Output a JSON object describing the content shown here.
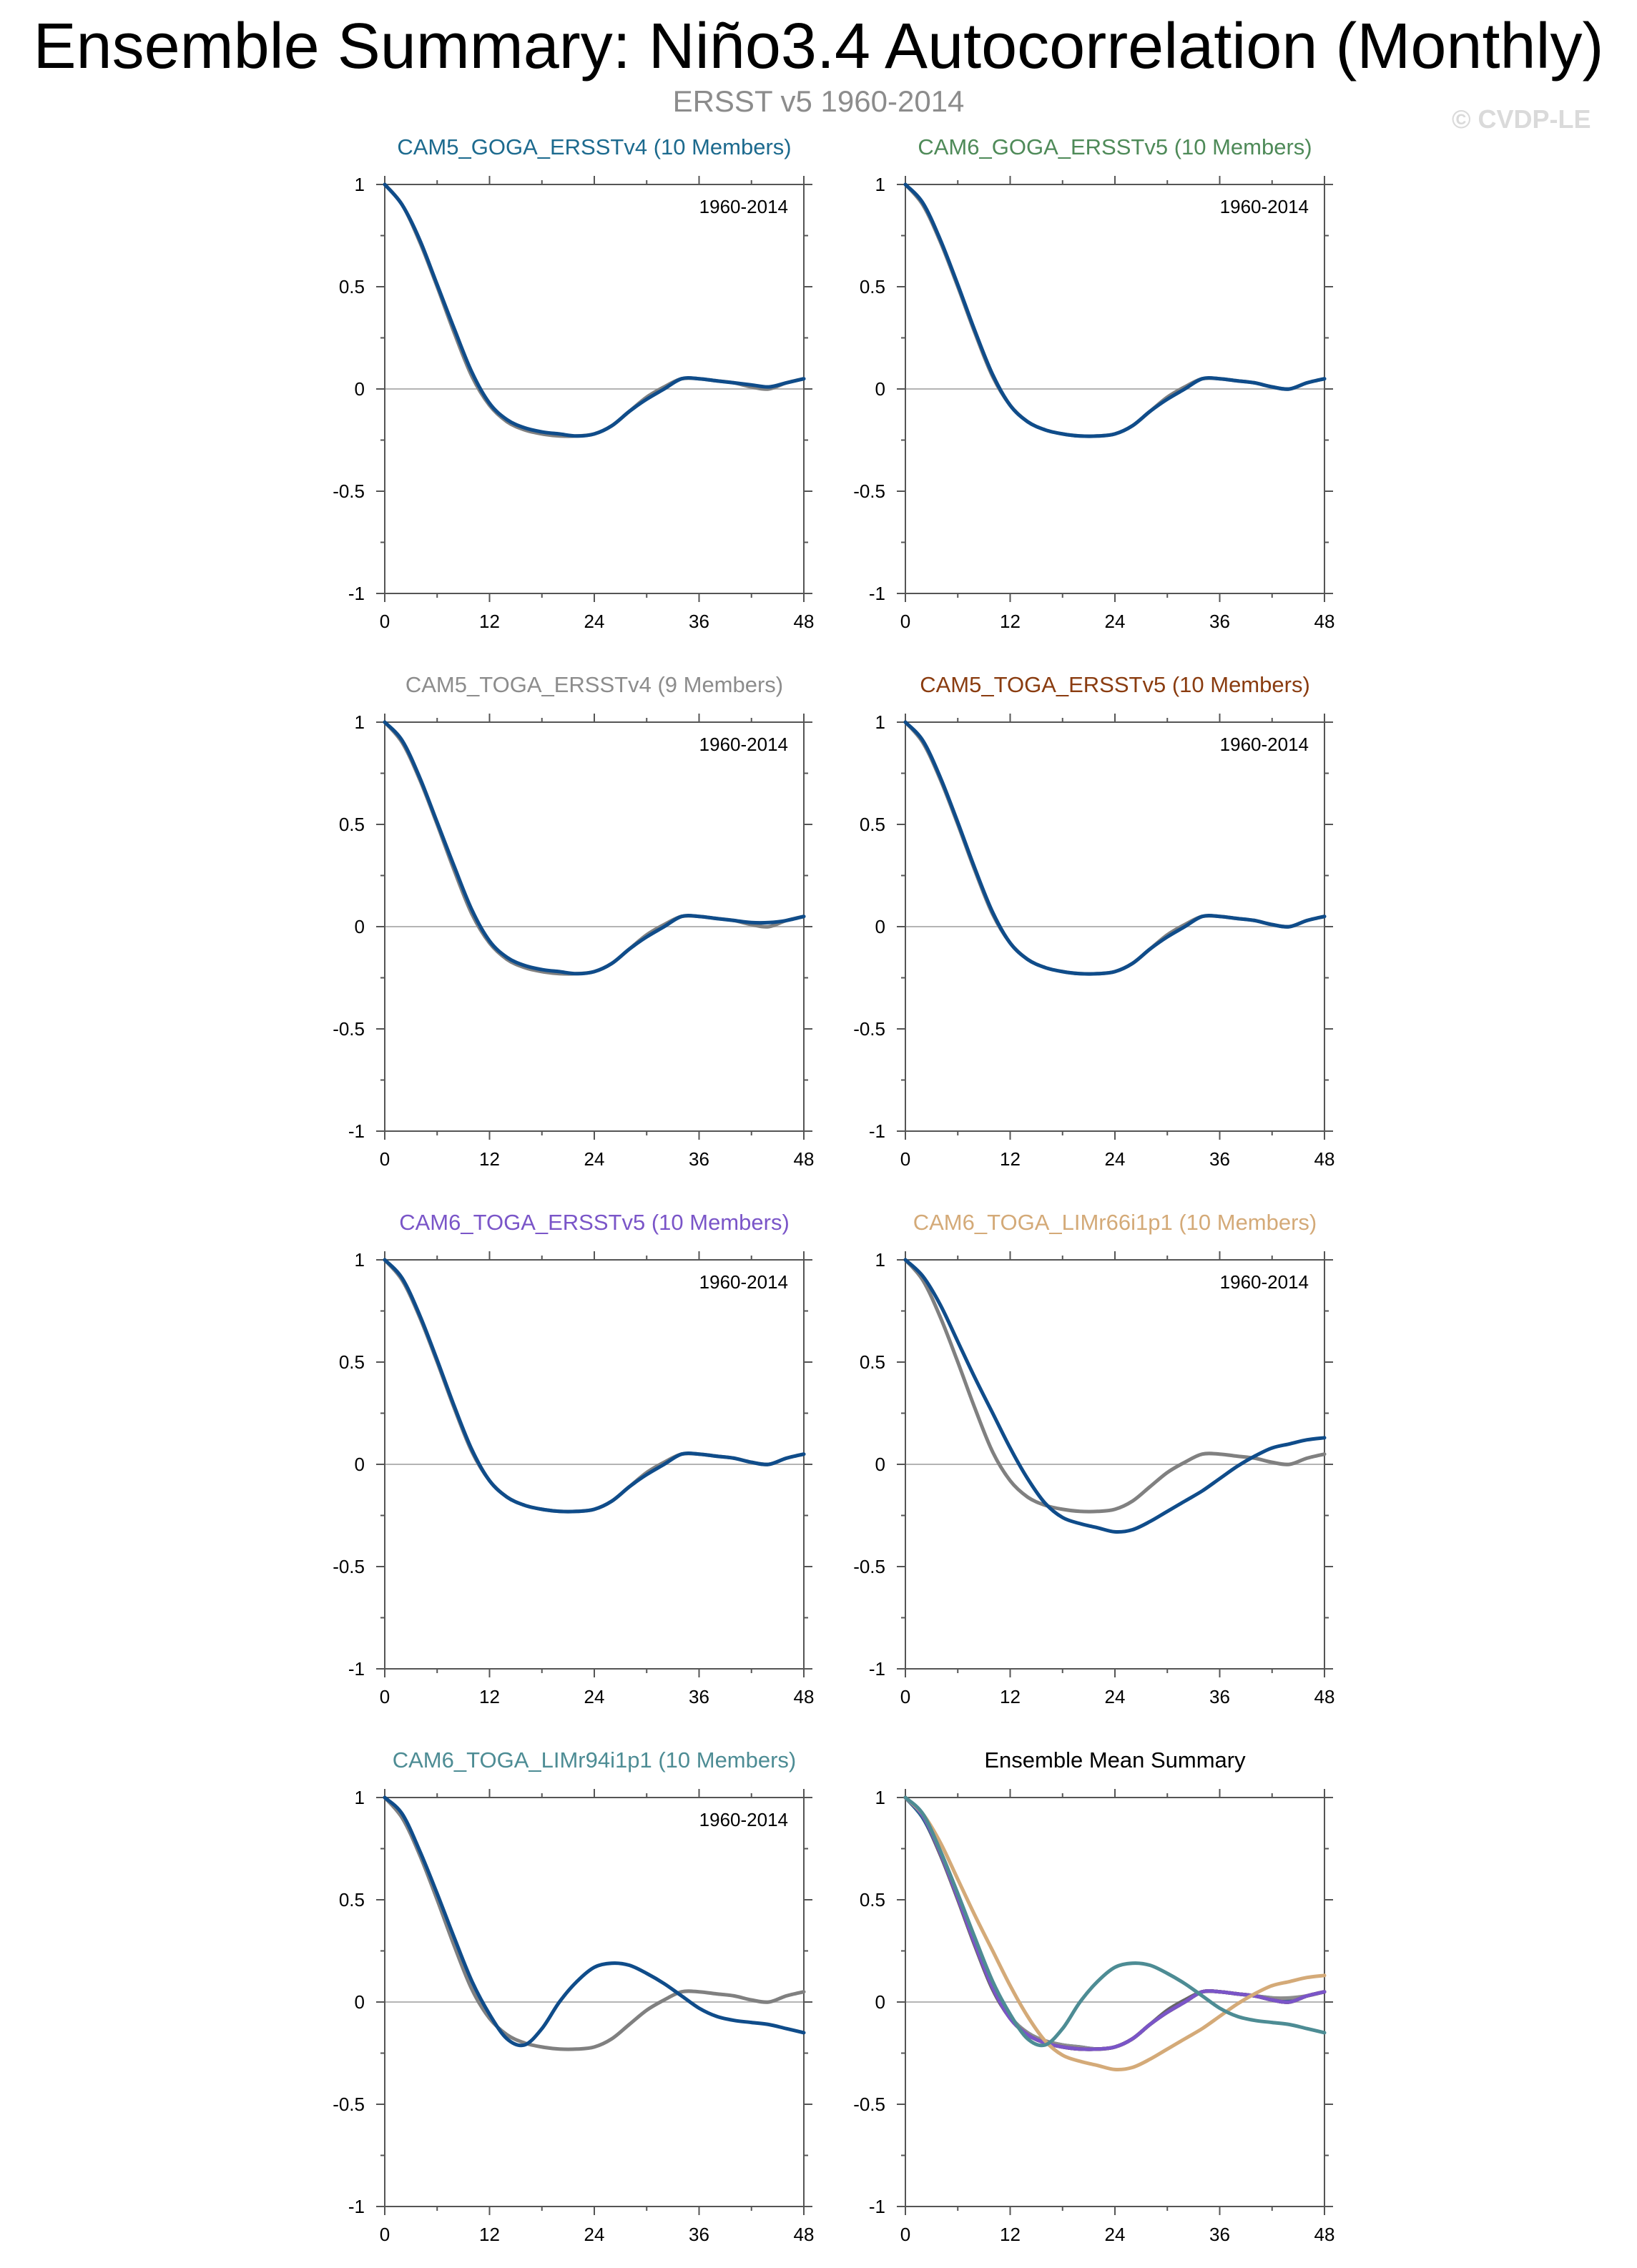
{
  "header": {
    "title": "Ensemble Summary: Niño3.4 Autocorrelation (Monthly)",
    "subtitle": "ERSST v5 1960-2014",
    "copyright": "© CVDP-LE"
  },
  "colors": {
    "observations": "#808080",
    "zero_line": "#b4b4b4",
    "axis": "#555555",
    "CAM5_GOGA_ERSSTv4": "#1c6a8e",
    "CAM6_GOGA_ERSSTv5": "#4e8a58",
    "CAM5_TOGA_ERSSTv4": "#8c8c8c",
    "CAM5_TOGA_ERSSTv5": "#8a3c10",
    "CAM6_TOGA_ERSSTv5": "#7a55c8",
    "CAM6_TOGA_LIMr66i1p1": "#d4aa78",
    "CAM6_TOGA_LIMr94i1p1": "#4d8c94",
    "ensemble_mean_line": "#0f4c8a"
  },
  "chart_data": [
    {
      "type": "line",
      "title": "CAM5_GOGA_ERSSTv4 (10 Members)",
      "title_color": "#1c6a8e",
      "annotation": "1960-2014",
      "xlabel": "",
      "ylabel": "",
      "xlim": [
        0,
        48
      ],
      "ylim": [
        -1,
        1
      ],
      "x_ticks": [
        "0",
        "12",
        "24",
        "36",
        "48"
      ],
      "y_ticks": [
        "1",
        "0.5",
        "0",
        "-0.5",
        "-1"
      ],
      "x": [
        0,
        2,
        4,
        6,
        8,
        10,
        12,
        14,
        16,
        18,
        20,
        22,
        24,
        26,
        28,
        30,
        32,
        34,
        36,
        38,
        40,
        42,
        44,
        46,
        48
      ],
      "series": [
        {
          "name": "ERSST v5",
          "color": "#808080",
          "values": [
            1,
            0.9,
            0.72,
            0.5,
            0.27,
            0.06,
            -0.08,
            -0.16,
            -0.2,
            -0.22,
            -0.23,
            -0.23,
            -0.22,
            -0.18,
            -0.11,
            -0.04,
            0.01,
            0.05,
            0.05,
            0.04,
            0.03,
            0.01,
            0.0,
            0.03,
            0.05
          ]
        },
        {
          "name": "Ensemble Mean",
          "color": "#0f4c8a",
          "values": [
            1,
            0.9,
            0.73,
            0.51,
            0.29,
            0.08,
            -0.07,
            -0.15,
            -0.19,
            -0.21,
            -0.22,
            -0.23,
            -0.22,
            -0.18,
            -0.11,
            -0.05,
            0.0,
            0.05,
            0.05,
            0.04,
            0.03,
            0.02,
            0.01,
            0.03,
            0.05
          ]
        }
      ]
    },
    {
      "type": "line",
      "title": "CAM6_GOGA_ERSSTv5 (10 Members)",
      "title_color": "#4e8a58",
      "annotation": "1960-2014",
      "xlabel": "",
      "ylabel": "",
      "xlim": [
        0,
        48
      ],
      "ylim": [
        -1,
        1
      ],
      "x_ticks": [
        "0",
        "12",
        "24",
        "36",
        "48"
      ],
      "y_ticks": [
        "1",
        "0.5",
        "0",
        "-0.5",
        "-1"
      ],
      "x": [
        0,
        2,
        4,
        6,
        8,
        10,
        12,
        14,
        16,
        18,
        20,
        22,
        24,
        26,
        28,
        30,
        32,
        34,
        36,
        38,
        40,
        42,
        44,
        46,
        48
      ],
      "series": [
        {
          "name": "ERSST v5",
          "color": "#808080",
          "values": [
            1,
            0.9,
            0.72,
            0.5,
            0.27,
            0.06,
            -0.08,
            -0.16,
            -0.2,
            -0.22,
            -0.23,
            -0.23,
            -0.22,
            -0.18,
            -0.11,
            -0.04,
            0.01,
            0.05,
            0.05,
            0.04,
            0.03,
            0.01,
            0.0,
            0.03,
            0.05
          ]
        },
        {
          "name": "Ensemble Mean",
          "color": "#0f4c8a",
          "values": [
            1,
            0.91,
            0.73,
            0.51,
            0.28,
            0.07,
            -0.08,
            -0.16,
            -0.2,
            -0.22,
            -0.23,
            -0.23,
            -0.22,
            -0.18,
            -0.11,
            -0.05,
            0.0,
            0.05,
            0.05,
            0.04,
            0.03,
            0.01,
            0.0,
            0.03,
            0.05
          ]
        }
      ]
    },
    {
      "type": "line",
      "title": "CAM5_TOGA_ERSSTv4 (9 Members)",
      "title_color": "#8c8c8c",
      "annotation": "1960-2014",
      "xlabel": "",
      "ylabel": "",
      "xlim": [
        0,
        48
      ],
      "ylim": [
        -1,
        1
      ],
      "x_ticks": [
        "0",
        "12",
        "24",
        "36",
        "48"
      ],
      "y_ticks": [
        "1",
        "0.5",
        "0",
        "-0.5",
        "-1"
      ],
      "x": [
        0,
        2,
        4,
        6,
        8,
        10,
        12,
        14,
        16,
        18,
        20,
        22,
        24,
        26,
        28,
        30,
        32,
        34,
        36,
        38,
        40,
        42,
        44,
        46,
        48
      ],
      "series": [
        {
          "name": "ERSST v5",
          "color": "#808080",
          "values": [
            1,
            0.9,
            0.72,
            0.5,
            0.27,
            0.06,
            -0.08,
            -0.16,
            -0.2,
            -0.22,
            -0.23,
            -0.23,
            -0.22,
            -0.18,
            -0.11,
            -0.04,
            0.01,
            0.05,
            0.05,
            0.04,
            0.03,
            0.01,
            0.0,
            0.03,
            0.05
          ]
        },
        {
          "name": "Ensemble Mean",
          "color": "#0f4c8a",
          "values": [
            1,
            0.91,
            0.73,
            0.51,
            0.29,
            0.08,
            -0.07,
            -0.15,
            -0.19,
            -0.21,
            -0.22,
            -0.23,
            -0.22,
            -0.18,
            -0.11,
            -0.05,
            0.0,
            0.05,
            0.05,
            0.04,
            0.03,
            0.02,
            0.02,
            0.03,
            0.05
          ]
        }
      ]
    },
    {
      "type": "line",
      "title": "CAM5_TOGA_ERSSTv5 (10 Members)",
      "title_color": "#8a3c10",
      "annotation": "1960-2014",
      "xlabel": "",
      "ylabel": "",
      "xlim": [
        0,
        48
      ],
      "ylim": [
        -1,
        1
      ],
      "x_ticks": [
        "0",
        "12",
        "24",
        "36",
        "48"
      ],
      "y_ticks": [
        "1",
        "0.5",
        "0",
        "-0.5",
        "-1"
      ],
      "x": [
        0,
        2,
        4,
        6,
        8,
        10,
        12,
        14,
        16,
        18,
        20,
        22,
        24,
        26,
        28,
        30,
        32,
        34,
        36,
        38,
        40,
        42,
        44,
        46,
        48
      ],
      "series": [
        {
          "name": "ERSST v5",
          "color": "#808080",
          "values": [
            1,
            0.9,
            0.72,
            0.5,
            0.27,
            0.06,
            -0.08,
            -0.16,
            -0.2,
            -0.22,
            -0.23,
            -0.23,
            -0.22,
            -0.18,
            -0.11,
            -0.04,
            0.01,
            0.05,
            0.05,
            0.04,
            0.03,
            0.01,
            0.0,
            0.03,
            0.05
          ]
        },
        {
          "name": "Ensemble Mean",
          "color": "#0f4c8a",
          "values": [
            1,
            0.91,
            0.73,
            0.51,
            0.28,
            0.07,
            -0.08,
            -0.16,
            -0.2,
            -0.22,
            -0.23,
            -0.23,
            -0.22,
            -0.18,
            -0.11,
            -0.05,
            0.0,
            0.05,
            0.05,
            0.04,
            0.03,
            0.01,
            0.0,
            0.03,
            0.05
          ]
        }
      ]
    },
    {
      "type": "line",
      "title": "CAM6_TOGA_ERSSTv5 (10 Members)",
      "title_color": "#7a55c8",
      "annotation": "1960-2014",
      "xlabel": "",
      "ylabel": "",
      "xlim": [
        0,
        48
      ],
      "ylim": [
        -1,
        1
      ],
      "x_ticks": [
        "0",
        "12",
        "24",
        "36",
        "48"
      ],
      "y_ticks": [
        "1",
        "0.5",
        "0",
        "-0.5",
        "-1"
      ],
      "x": [
        0,
        2,
        4,
        6,
        8,
        10,
        12,
        14,
        16,
        18,
        20,
        22,
        24,
        26,
        28,
        30,
        32,
        34,
        36,
        38,
        40,
        42,
        44,
        46,
        48
      ],
      "series": [
        {
          "name": "ERSST v5",
          "color": "#808080",
          "values": [
            1,
            0.9,
            0.72,
            0.5,
            0.27,
            0.06,
            -0.08,
            -0.16,
            -0.2,
            -0.22,
            -0.23,
            -0.23,
            -0.22,
            -0.18,
            -0.11,
            -0.04,
            0.01,
            0.05,
            0.05,
            0.04,
            0.03,
            0.01,
            0.0,
            0.03,
            0.05
          ]
        },
        {
          "name": "Ensemble Mean",
          "color": "#0f4c8a",
          "values": [
            1,
            0.91,
            0.73,
            0.51,
            0.28,
            0.07,
            -0.08,
            -0.16,
            -0.2,
            -0.22,
            -0.23,
            -0.23,
            -0.22,
            -0.18,
            -0.11,
            -0.05,
            0.0,
            0.05,
            0.05,
            0.04,
            0.03,
            0.01,
            0.0,
            0.03,
            0.05
          ]
        }
      ]
    },
    {
      "type": "line",
      "title": "CAM6_TOGA_LIMr66i1p1 (10 Members)",
      "title_color": "#d4aa78",
      "annotation": "1960-2014",
      "xlabel": "",
      "ylabel": "",
      "xlim": [
        0,
        48
      ],
      "ylim": [
        -1,
        1
      ],
      "x_ticks": [
        "0",
        "12",
        "24",
        "36",
        "48"
      ],
      "y_ticks": [
        "1",
        "0.5",
        "0",
        "-0.5",
        "-1"
      ],
      "x": [
        0,
        2,
        4,
        6,
        8,
        10,
        12,
        14,
        16,
        18,
        20,
        22,
        24,
        26,
        28,
        30,
        32,
        34,
        36,
        38,
        40,
        42,
        44,
        46,
        48
      ],
      "series": [
        {
          "name": "ERSST v5",
          "color": "#808080",
          "values": [
            1,
            0.9,
            0.72,
            0.5,
            0.27,
            0.06,
            -0.08,
            -0.16,
            -0.2,
            -0.22,
            -0.23,
            -0.23,
            -0.22,
            -0.18,
            -0.11,
            -0.04,
            0.01,
            0.05,
            0.05,
            0.04,
            0.03,
            0.01,
            0.0,
            0.03,
            0.05
          ]
        },
        {
          "name": "Ensemble Mean",
          "color": "#0f4c8a",
          "values": [
            1,
            0.92,
            0.78,
            0.6,
            0.42,
            0.25,
            0.08,
            -0.07,
            -0.19,
            -0.26,
            -0.29,
            -0.31,
            -0.33,
            -0.32,
            -0.28,
            -0.23,
            -0.18,
            -0.13,
            -0.07,
            -0.01,
            0.04,
            0.08,
            0.1,
            0.12,
            0.13
          ]
        }
      ]
    },
    {
      "type": "line",
      "title": "CAM6_TOGA_LIMr94i1p1 (10 Members)",
      "title_color": "#4d8c94",
      "annotation": "1960-2014",
      "xlabel": "",
      "ylabel": "",
      "xlim": [
        0,
        48
      ],
      "ylim": [
        -1,
        1
      ],
      "x_ticks": [
        "0",
        "12",
        "24",
        "36",
        "48"
      ],
      "y_ticks": [
        "1",
        "0.5",
        "0",
        "-0.5",
        "-1"
      ],
      "x": [
        0,
        2,
        4,
        6,
        8,
        10,
        12,
        14,
        16,
        18,
        20,
        22,
        24,
        26,
        28,
        30,
        32,
        34,
        36,
        38,
        40,
        42,
        44,
        46,
        48
      ],
      "series": [
        {
          "name": "ERSST v5",
          "color": "#808080",
          "values": [
            1,
            0.9,
            0.72,
            0.5,
            0.27,
            0.06,
            -0.08,
            -0.16,
            -0.2,
            -0.22,
            -0.23,
            -0.23,
            -0.22,
            -0.18,
            -0.11,
            -0.04,
            0.01,
            0.05,
            0.05,
            0.04,
            0.03,
            0.01,
            0.0,
            0.03,
            0.05
          ]
        },
        {
          "name": "Ensemble Mean",
          "color": "#0f4c8a",
          "values": [
            1,
            0.92,
            0.74,
            0.53,
            0.31,
            0.1,
            -0.06,
            -0.18,
            -0.21,
            -0.13,
            0.0,
            0.1,
            0.17,
            0.19,
            0.18,
            0.14,
            0.09,
            0.03,
            -0.03,
            -0.07,
            -0.09,
            -0.1,
            -0.11,
            -0.13,
            -0.15
          ]
        }
      ]
    },
    {
      "type": "line",
      "title": "Ensemble Mean Summary",
      "title_color": "#000000",
      "annotation": "",
      "xlabel": "",
      "ylabel": "",
      "xlim": [
        0,
        48
      ],
      "ylim": [
        -1,
        1
      ],
      "x_ticks": [
        "0",
        "12",
        "24",
        "36",
        "48"
      ],
      "y_ticks": [
        "1",
        "0.5",
        "0",
        "-0.5",
        "-1"
      ],
      "x": [
        0,
        2,
        4,
        6,
        8,
        10,
        12,
        14,
        16,
        18,
        20,
        22,
        24,
        26,
        28,
        30,
        32,
        34,
        36,
        38,
        40,
        42,
        44,
        46,
        48
      ],
      "series": [
        {
          "name": "ERSST v5",
          "color": "#666666",
          "values": [
            1,
            0.9,
            0.72,
            0.5,
            0.27,
            0.06,
            -0.08,
            -0.16,
            -0.2,
            -0.22,
            -0.23,
            -0.23,
            -0.22,
            -0.18,
            -0.11,
            -0.04,
            0.01,
            0.05,
            0.05,
            0.04,
            0.03,
            0.01,
            0.0,
            0.03,
            0.05
          ]
        },
        {
          "name": "CAM5_GOGA_ERSSTv4",
          "color": "#1c6a8e",
          "values": [
            1,
            0.9,
            0.73,
            0.51,
            0.29,
            0.08,
            -0.07,
            -0.15,
            -0.19,
            -0.21,
            -0.22,
            -0.23,
            -0.22,
            -0.18,
            -0.11,
            -0.05,
            0.0,
            0.05,
            0.05,
            0.04,
            0.03,
            0.02,
            0.01,
            0.03,
            0.05
          ]
        },
        {
          "name": "CAM6_GOGA_ERSSTv5",
          "color": "#4e8a58",
          "values": [
            1,
            0.91,
            0.73,
            0.51,
            0.28,
            0.07,
            -0.08,
            -0.16,
            -0.2,
            -0.22,
            -0.23,
            -0.23,
            -0.22,
            -0.18,
            -0.11,
            -0.05,
            0.0,
            0.05,
            0.05,
            0.04,
            0.03,
            0.01,
            0.0,
            0.03,
            0.05
          ]
        },
        {
          "name": "CAM5_TOGA_ERSSTv4",
          "color": "#8c8c8c",
          "values": [
            1,
            0.91,
            0.73,
            0.51,
            0.29,
            0.08,
            -0.07,
            -0.15,
            -0.19,
            -0.21,
            -0.22,
            -0.23,
            -0.22,
            -0.18,
            -0.11,
            -0.05,
            0.0,
            0.05,
            0.05,
            0.04,
            0.03,
            0.02,
            0.02,
            0.03,
            0.05
          ]
        },
        {
          "name": "CAM5_TOGA_ERSSTv5",
          "color": "#8a3c10",
          "values": [
            1,
            0.91,
            0.73,
            0.51,
            0.28,
            0.07,
            -0.08,
            -0.16,
            -0.2,
            -0.22,
            -0.23,
            -0.23,
            -0.22,
            -0.18,
            -0.11,
            -0.05,
            0.0,
            0.05,
            0.05,
            0.04,
            0.03,
            0.01,
            0.0,
            0.03,
            0.05
          ]
        },
        {
          "name": "CAM6_TOGA_ERSSTv5",
          "color": "#7a55c8",
          "values": [
            1,
            0.91,
            0.73,
            0.51,
            0.28,
            0.07,
            -0.08,
            -0.16,
            -0.2,
            -0.22,
            -0.23,
            -0.23,
            -0.22,
            -0.18,
            -0.11,
            -0.05,
            0.0,
            0.05,
            0.05,
            0.04,
            0.03,
            0.01,
            0.0,
            0.03,
            0.05
          ]
        },
        {
          "name": "CAM6_TOGA_LIMr66i1p1",
          "color": "#d4aa78",
          "values": [
            1,
            0.92,
            0.78,
            0.6,
            0.42,
            0.25,
            0.08,
            -0.07,
            -0.19,
            -0.26,
            -0.29,
            -0.31,
            -0.33,
            -0.32,
            -0.28,
            -0.23,
            -0.18,
            -0.13,
            -0.07,
            -0.01,
            0.04,
            0.08,
            0.1,
            0.12,
            0.13
          ]
        },
        {
          "name": "CAM6_TOGA_LIMr94i1p1",
          "color": "#4d8c94",
          "values": [
            1,
            0.92,
            0.74,
            0.53,
            0.31,
            0.1,
            -0.06,
            -0.18,
            -0.21,
            -0.13,
            0.0,
            0.1,
            0.17,
            0.19,
            0.18,
            0.14,
            0.09,
            0.03,
            -0.03,
            -0.07,
            -0.09,
            -0.1,
            -0.11,
            -0.13,
            -0.15
          ]
        }
      ]
    }
  ]
}
